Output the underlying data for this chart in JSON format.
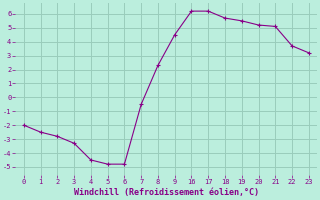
{
  "y_vals": [
    -2.0,
    -2.5,
    -2.8,
    -3.3,
    -4.5,
    -4.8,
    -4.8,
    -0.5,
    2.3,
    4.5,
    6.2,
    6.2,
    5.7,
    5.5,
    5.2,
    5.1,
    3.7,
    3.2
  ],
  "x_indices": [
    0,
    1,
    2,
    3,
    4,
    5,
    6,
    7,
    8,
    9,
    10,
    11,
    12,
    13,
    14,
    15,
    16,
    17
  ],
  "xtick_labels": [
    "0",
    "1",
    "2",
    "3",
    "4",
    "5",
    "6",
    "7",
    "8",
    "9",
    "16",
    "17",
    "18",
    "19",
    "20",
    "21",
    "22",
    "23"
  ],
  "yticks": [
    -5,
    -4,
    -3,
    -2,
    -1,
    0,
    1,
    2,
    3,
    4,
    5,
    6
  ],
  "line_color": "#880088",
  "marker": "+",
  "bg_color": "#bbeedd",
  "grid_color": "#99ccbb",
  "xlabel": "Windchill (Refroidissement éolien,°C)",
  "xlabel_color": "#880088",
  "tick_color": "#880088",
  "ylim": [
    -5.6,
    6.8
  ],
  "xlim": [
    -0.5,
    17.5
  ]
}
